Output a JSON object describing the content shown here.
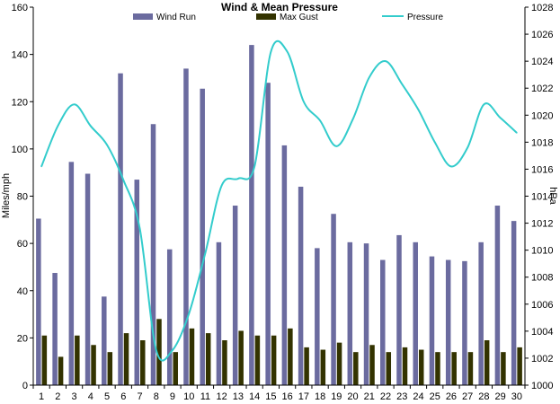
{
  "chart_data": {
    "type": "bar+line",
    "title": "Wind & Mean Pressure",
    "ylabel": "Miles/mph",
    "y2label": "hPa",
    "categories": [
      "1",
      "2",
      "3",
      "4",
      "5",
      "6",
      "7",
      "8",
      "9",
      "10",
      "11",
      "12",
      "13",
      "14",
      "15",
      "16",
      "17",
      "18",
      "19",
      "20",
      "21",
      "22",
      "23",
      "24",
      "25",
      "26",
      "27",
      "28",
      "29",
      "30"
    ],
    "ylim": [
      0,
      160
    ],
    "y_ticks": [
      "0",
      "20",
      "40",
      "60",
      "80",
      "100",
      "120",
      "140",
      "160"
    ],
    "y2lim": [
      1000,
      1028
    ],
    "y2_ticks": [
      "1000",
      "1002",
      "1004",
      "1006",
      "1008",
      "1010",
      "1012",
      "1014",
      "1016",
      "1018",
      "1020",
      "1022",
      "1024",
      "1026",
      "1028"
    ],
    "legend_position": "top",
    "series": [
      {
        "name": "Wind Run",
        "type": "bar",
        "axis": "left",
        "color": "#6b6b9f",
        "values": [
          70.5,
          47.5,
          94.5,
          89.5,
          37.5,
          132,
          87,
          110.5,
          57.5,
          134,
          125.5,
          60.5,
          76,
          144,
          128,
          101.5,
          84,
          58,
          72.5,
          60.5,
          60,
          53,
          63.5,
          60.5,
          54.5,
          53,
          52.5,
          60.5,
          76,
          69.5
        ]
      },
      {
        "name": "Max Gust",
        "type": "bar",
        "axis": "left",
        "color": "#333300",
        "values": [
          21,
          12,
          21,
          17,
          14,
          22,
          19,
          28,
          14,
          24,
          22,
          19,
          23,
          21,
          21,
          24,
          16,
          15,
          18,
          14,
          17,
          14,
          16,
          15,
          14,
          14,
          14,
          19,
          14,
          16
        ]
      },
      {
        "name": "Pressure",
        "type": "line",
        "axis": "right",
        "color": "#33cccc",
        "values": [
          1016.2,
          1019.2,
          1020.8,
          1019.2,
          1017.8,
          1015.2,
          1011.6,
          1002.6,
          1002.6,
          1005.3,
          1009.8,
          1014.8,
          1015.3,
          1016.2,
          1024.7,
          1024.7,
          1021,
          1019.6,
          1017.7,
          1019.7,
          1022.8,
          1024,
          1022.3,
          1020.4,
          1018,
          1016.2,
          1017.6,
          1020.8,
          1019.8,
          1018.7
        ]
      }
    ]
  }
}
